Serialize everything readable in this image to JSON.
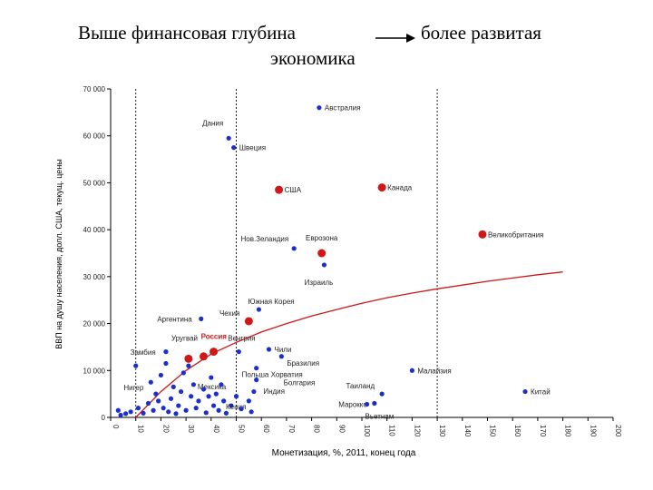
{
  "title": {
    "left": "Выше финансовая глубина",
    "right": "более развитая",
    "line2": "экономика"
  },
  "chart_data": {
    "type": "scatter",
    "xlabel": "Монетизация, %, 2011, конец года",
    "ylabel": "ВВП на душу населения, долл. США, текущ. цены",
    "xlim": [
      0,
      200
    ],
    "ylim": [
      0,
      70000
    ],
    "x_ticks": [
      0,
      10,
      20,
      30,
      40,
      50,
      60,
      70,
      80,
      90,
      100,
      110,
      120,
      130,
      140,
      150,
      160,
      170,
      180,
      190,
      200
    ],
    "x_tick_labels": [
      "0",
      "10",
      "20",
      "30",
      "40",
      "50",
      "60",
      "70",
      "80",
      "90",
      "100",
      "110",
      "120",
      "130",
      "140",
      "150",
      "160",
      "170",
      "180",
      "190",
      "200"
    ],
    "y_ticks": [
      0,
      10000,
      20000,
      30000,
      40000,
      50000,
      60000,
      70000
    ],
    "y_tick_labels": [
      "0",
      "10 000",
      "20 000",
      "30 000",
      "40 000",
      "50 000",
      "60 000",
      "70 000"
    ],
    "vertical_lines": [
      10,
      50,
      130
    ],
    "trend_line": {
      "x": [
        10,
        20,
        30,
        40,
        50,
        60,
        70,
        80,
        90,
        100,
        110,
        120,
        130,
        140,
        150,
        160,
        170,
        180
      ],
      "y": [
        0,
        5500,
        10000,
        13500,
        16000,
        18200,
        20000,
        21600,
        23000,
        24300,
        25500,
        26500,
        27400,
        28200,
        29000,
        29700,
        30400,
        31000
      ]
    },
    "series": [
      {
        "name": "",
        "color": "#1a2fcc",
        "points": [
          {
            "x": 83,
            "y": 66000,
            "label": "Австралия"
          },
          {
            "x": 47,
            "y": 59500,
            "label": "Дания"
          },
          {
            "x": 49,
            "y": 57500,
            "label": "Швеция"
          },
          {
            "x": 73,
            "y": 36000,
            "label": "Нов.Зеландия"
          },
          {
            "x": 85,
            "y": 32500,
            "label": "Израиль"
          },
          {
            "x": 59,
            "y": 23000,
            "label": "Южная Корея"
          },
          {
            "x": 36,
            "y": 21000,
            "label": "Аргентина"
          },
          {
            "x": 22,
            "y": 14000,
            "label": "Уругвай"
          },
          {
            "x": 51,
            "y": 14000,
            "label": "Венгрия"
          },
          {
            "x": 63,
            "y": 14500,
            "label": "Чили"
          },
          {
            "x": 10,
            "y": 11000,
            "label": "Замбия"
          },
          {
            "x": 31,
            "y": 11000,
            "label": "Мексика"
          },
          {
            "x": 68,
            "y": 13000,
            "label": "Бразилия"
          },
          {
            "x": 58,
            "y": 10500,
            "label": "Польша Хорватия"
          },
          {
            "x": 120,
            "y": 10000,
            "label": "Малайзия"
          },
          {
            "x": 58,
            "y": 8000,
            "label": "Болгария"
          },
          {
            "x": 108,
            "y": 5000,
            "label": "Таиланд"
          },
          {
            "x": 105,
            "y": 3000,
            "label": "Марокко"
          },
          {
            "x": 102,
            "y": 2800,
            "label": "Вьетнам"
          },
          {
            "x": 165,
            "y": 5500,
            "label": "Китай"
          },
          {
            "x": 55,
            "y": 3500,
            "label": "Индия"
          },
          {
            "x": 48,
            "y": 2500,
            "label": "Кения"
          },
          {
            "x": 3,
            "y": 1500,
            "label": "Нигер"
          },
          {
            "x": 4,
            "y": 500,
            "label": ""
          },
          {
            "x": 6,
            "y": 800,
            "label": ""
          },
          {
            "x": 8,
            "y": 1200,
            "label": ""
          },
          {
            "x": 11,
            "y": 2000,
            "label": ""
          },
          {
            "x": 13,
            "y": 900,
            "label": ""
          },
          {
            "x": 15,
            "y": 3000,
            "label": ""
          },
          {
            "x": 16,
            "y": 7500,
            "label": ""
          },
          {
            "x": 17,
            "y": 1500,
            "label": ""
          },
          {
            "x": 18,
            "y": 5000,
            "label": ""
          },
          {
            "x": 19,
            "y": 3500,
            "label": ""
          },
          {
            "x": 20,
            "y": 9000,
            "label": ""
          },
          {
            "x": 21,
            "y": 2000,
            "label": ""
          },
          {
            "x": 22,
            "y": 11500,
            "label": ""
          },
          {
            "x": 23,
            "y": 1200,
            "label": ""
          },
          {
            "x": 24,
            "y": 4000,
            "label": ""
          },
          {
            "x": 25,
            "y": 6500,
            "label": ""
          },
          {
            "x": 26,
            "y": 800,
            "label": ""
          },
          {
            "x": 27,
            "y": 2500,
            "label": ""
          },
          {
            "x": 28,
            "y": 5500,
            "label": ""
          },
          {
            "x": 29,
            "y": 9500,
            "label": ""
          },
          {
            "x": 30,
            "y": 1500,
            "label": ""
          },
          {
            "x": 32,
            "y": 4500,
            "label": ""
          },
          {
            "x": 33,
            "y": 7000,
            "label": ""
          },
          {
            "x": 34,
            "y": 2000,
            "label": ""
          },
          {
            "x": 35,
            "y": 3500,
            "label": ""
          },
          {
            "x": 37,
            "y": 6000,
            "label": ""
          },
          {
            "x": 38,
            "y": 1000,
            "label": ""
          },
          {
            "x": 39,
            "y": 4500,
            "label": ""
          },
          {
            "x": 40,
            "y": 8500,
            "label": ""
          },
          {
            "x": 41,
            "y": 2500,
            "label": ""
          },
          {
            "x": 42,
            "y": 5000,
            "label": ""
          },
          {
            "x": 43,
            "y": 1500,
            "label": ""
          },
          {
            "x": 44,
            "y": 7000,
            "label": ""
          },
          {
            "x": 45,
            "y": 3500,
            "label": ""
          },
          {
            "x": 46,
            "y": 900,
            "label": ""
          },
          {
            "x": 50,
            "y": 4500,
            "label": ""
          },
          {
            "x": 52,
            "y": 1800,
            "label": ""
          },
          {
            "x": 56,
            "y": 1200,
            "label": ""
          },
          {
            "x": 57,
            "y": 5500,
            "label": ""
          }
        ]
      },
      {
        "name": "",
        "color": "#d01818",
        "points": [
          {
            "x": 67,
            "y": 48500,
            "label": "США"
          },
          {
            "x": 108,
            "y": 49000,
            "label": "Канада"
          },
          {
            "x": 148,
            "y": 39000,
            "label": "Великобритания"
          },
          {
            "x": 84,
            "y": 35000,
            "label": "Еврозона"
          },
          {
            "x": 55,
            "y": 20500,
            "label": "Чехия"
          },
          {
            "x": 41,
            "y": 14000,
            "label": "Россия"
          },
          {
            "x": 37,
            "y": 13000,
            "label": ""
          },
          {
            "x": 31,
            "y": 12500,
            "label": ""
          }
        ]
      }
    ]
  }
}
